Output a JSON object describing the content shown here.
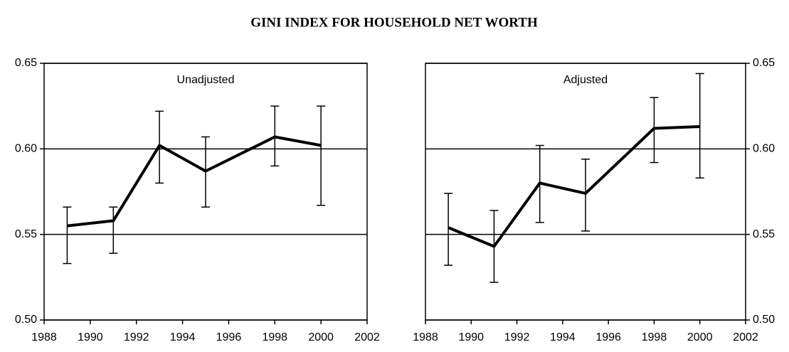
{
  "title": "GINI INDEX FOR HOUSEHOLD NET WORTH",
  "chart_data": [
    {
      "type": "line",
      "label": "Unadjusted",
      "color": "#000000",
      "y_axis_side": "left",
      "grid": true,
      "x": [
        1989,
        1991,
        1993,
        1995,
        1998,
        2000
      ],
      "values": [
        0.555,
        0.558,
        0.602,
        0.587,
        0.607,
        0.602
      ],
      "lower": [
        0.533,
        0.539,
        0.58,
        0.566,
        0.59,
        0.567
      ],
      "upper": [
        0.566,
        0.566,
        0.622,
        0.607,
        0.625,
        0.625
      ],
      "xlim": [
        1988,
        2002
      ],
      "xticks": [
        1988,
        1990,
        1992,
        1994,
        1996,
        1998,
        2000,
        2002
      ],
      "ylim": [
        0.5,
        0.65
      ],
      "yticks": [
        {
          "value": 0.5,
          "label": "0.50"
        },
        0.55,
        {
          "value": 0.6,
          "label": "0.60"
        },
        0.65
      ]
    },
    {
      "type": "line",
      "label": "Adjusted",
      "color": "#000000",
      "y_axis_side": "right",
      "grid": true,
      "x": [
        1989,
        1991,
        1993,
        1995,
        1998,
        2000
      ],
      "values": [
        0.554,
        0.543,
        0.58,
        0.574,
        0.612,
        0.613
      ],
      "lower": [
        0.532,
        0.522,
        0.557,
        0.552,
        0.592,
        0.583
      ],
      "upper": [
        0.574,
        0.564,
        0.602,
        0.594,
        0.63,
        0.644
      ],
      "xlim": [
        1988,
        2002
      ],
      "xticks": [
        1988,
        1990,
        1992,
        1994,
        1996,
        1998,
        2000,
        2002
      ],
      "ylim": [
        0.5,
        0.65
      ],
      "yticks": [
        {
          "value": 0.5,
          "label": "0.50"
        },
        0.55,
        {
          "value": 0.6,
          "label": "0.60"
        },
        0.65
      ]
    }
  ]
}
